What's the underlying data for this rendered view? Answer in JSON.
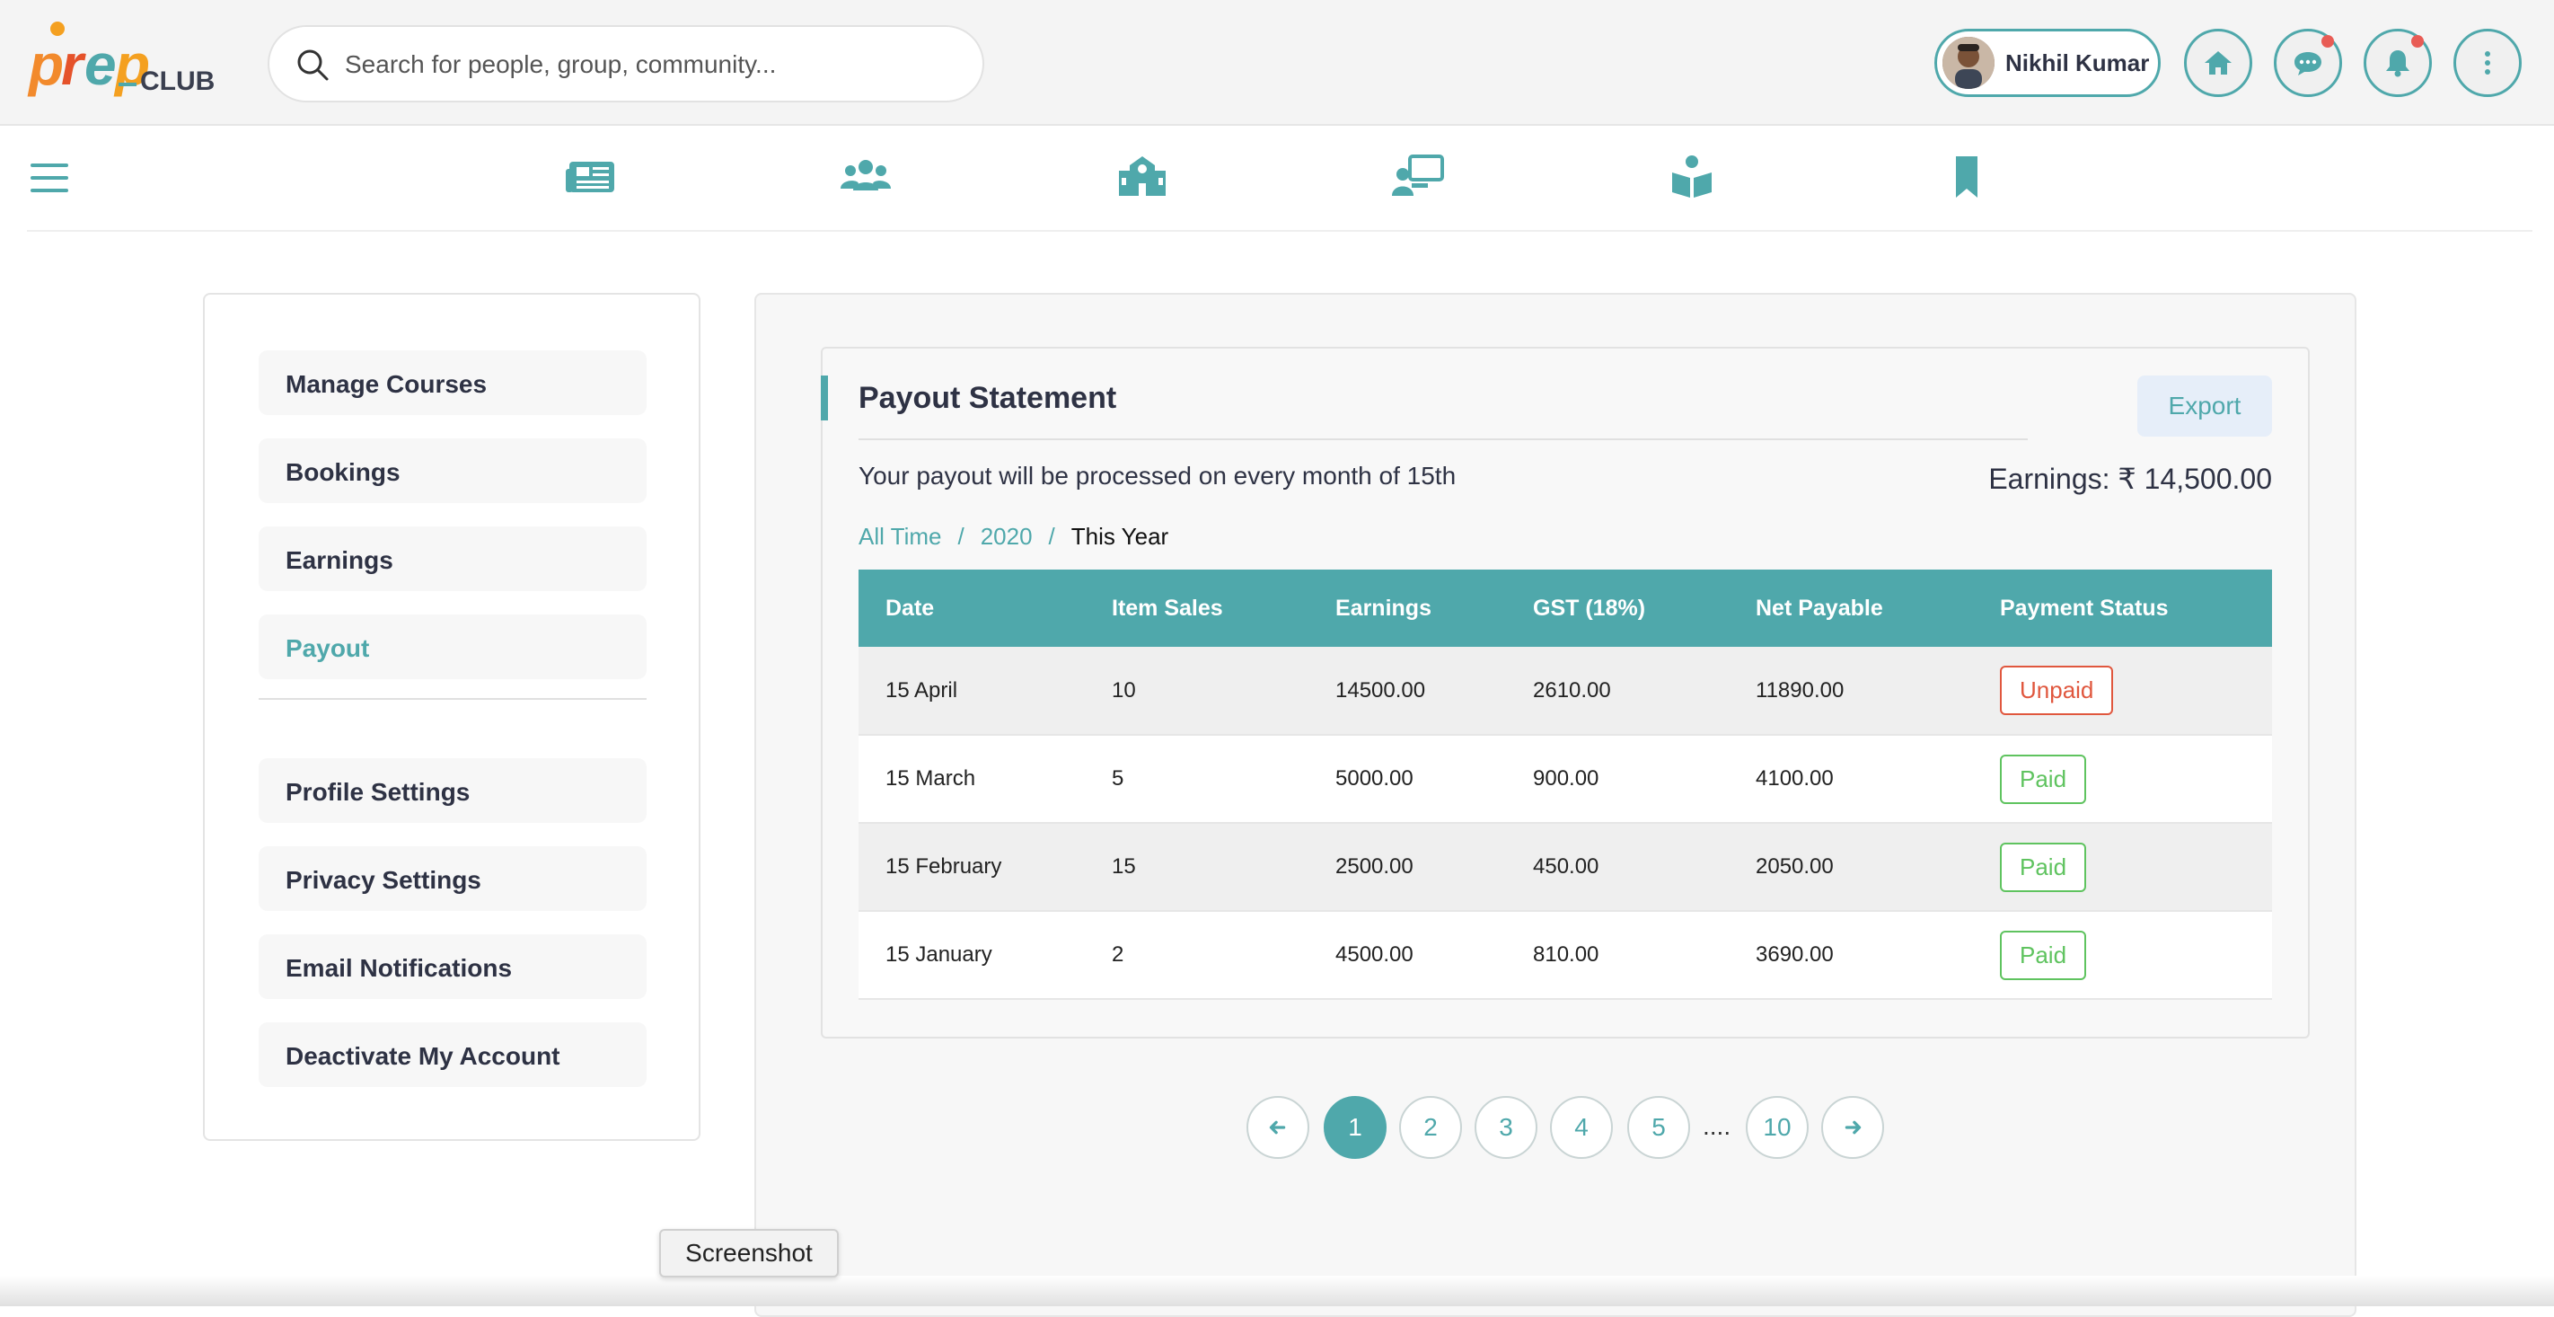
{
  "header": {
    "logo_text": "PrepCLUB",
    "search_placeholder": "Search for people, group, community...",
    "user_name": "Nikhil Kumar",
    "accent_color": "#4fa8ab",
    "notification_dot_color": "#e85c55",
    "buttons": [
      "home-icon",
      "chat-icon",
      "bell-icon",
      "kebab-menu-icon"
    ]
  },
  "nav": {
    "icons": [
      "newspaper-icon",
      "people-group-icon",
      "school-icon",
      "teacher-board-icon",
      "book-reader-icon",
      "bookmark-icon"
    ]
  },
  "sidebar": {
    "items": [
      {
        "label": "Manage Courses"
      },
      {
        "label": "Bookings"
      },
      {
        "label": "Earnings"
      },
      {
        "label": "Payout"
      },
      {
        "label": "Profile Settings"
      },
      {
        "label": "Privacy Settings"
      },
      {
        "label": "Email Notifications"
      },
      {
        "label": "Deactivate My Account"
      }
    ],
    "active": "Payout"
  },
  "payout": {
    "title": "Payout Statement",
    "export_label": "Export",
    "note": "Your payout will be processed on every month of 15th",
    "earnings_label": "Earnings: ₹ 14,500.00",
    "breadcrumb": [
      "All Time",
      "2020",
      "This Year"
    ],
    "breadcrumb_sep": "/",
    "table": {
      "headers": [
        "Date",
        "Item Sales",
        "Earnings",
        "GST (18%)",
        "Net Payable",
        "Payment Status"
      ],
      "rows": [
        {
          "date": "15 April",
          "items": "10",
          "earnings": "14500.00",
          "gst": "2610.00",
          "net": "11890.00",
          "status": "Unpaid"
        },
        {
          "date": "15 March",
          "items": "5",
          "earnings": "5000.00",
          "gst": "900.00",
          "net": "4100.00",
          "status": "Paid"
        },
        {
          "date": "15 February",
          "items": "15",
          "earnings": "2500.00",
          "gst": "450.00",
          "net": "2050.00",
          "status": "Paid"
        },
        {
          "date": "15 January",
          "items": "2",
          "earnings": "4500.00",
          "gst": "810.00",
          "net": "3690.00",
          "status": "Paid"
        }
      ]
    },
    "status_colors": {
      "unpaid": "#e0573e",
      "paid": "#5fc35f"
    }
  },
  "pagination": {
    "pages": [
      "1",
      "2",
      "3",
      "4",
      "5"
    ],
    "ellipsis": "....",
    "last": "10",
    "current": "1"
  },
  "tooltip": {
    "text": "Screenshot"
  }
}
